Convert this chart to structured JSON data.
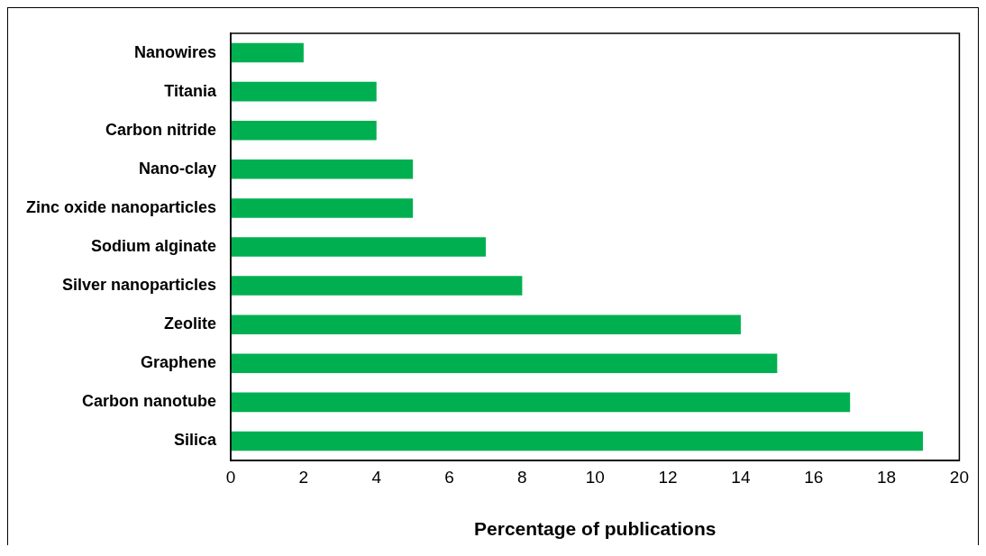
{
  "chart_data": {
    "type": "bar",
    "orientation": "horizontal",
    "xlabel": "Percentage of publications",
    "categories": [
      "Nanowires",
      "Titania",
      "Carbon nitride",
      "Nano-clay",
      "Zinc oxide nanoparticles",
      "Sodium alginate",
      "Silver nanoparticles",
      "Zeolite",
      "Graphene",
      "Carbon nanotube",
      "Silica"
    ],
    "values": [
      2,
      4,
      4,
      5,
      5,
      7,
      8,
      14,
      15,
      17,
      19
    ],
    "color": "#00b050",
    "xlim": [
      0,
      20
    ],
    "xticks": [
      0,
      2,
      4,
      6,
      8,
      10,
      12,
      14,
      16,
      18,
      20
    ],
    "grid": false,
    "legend": false
  }
}
